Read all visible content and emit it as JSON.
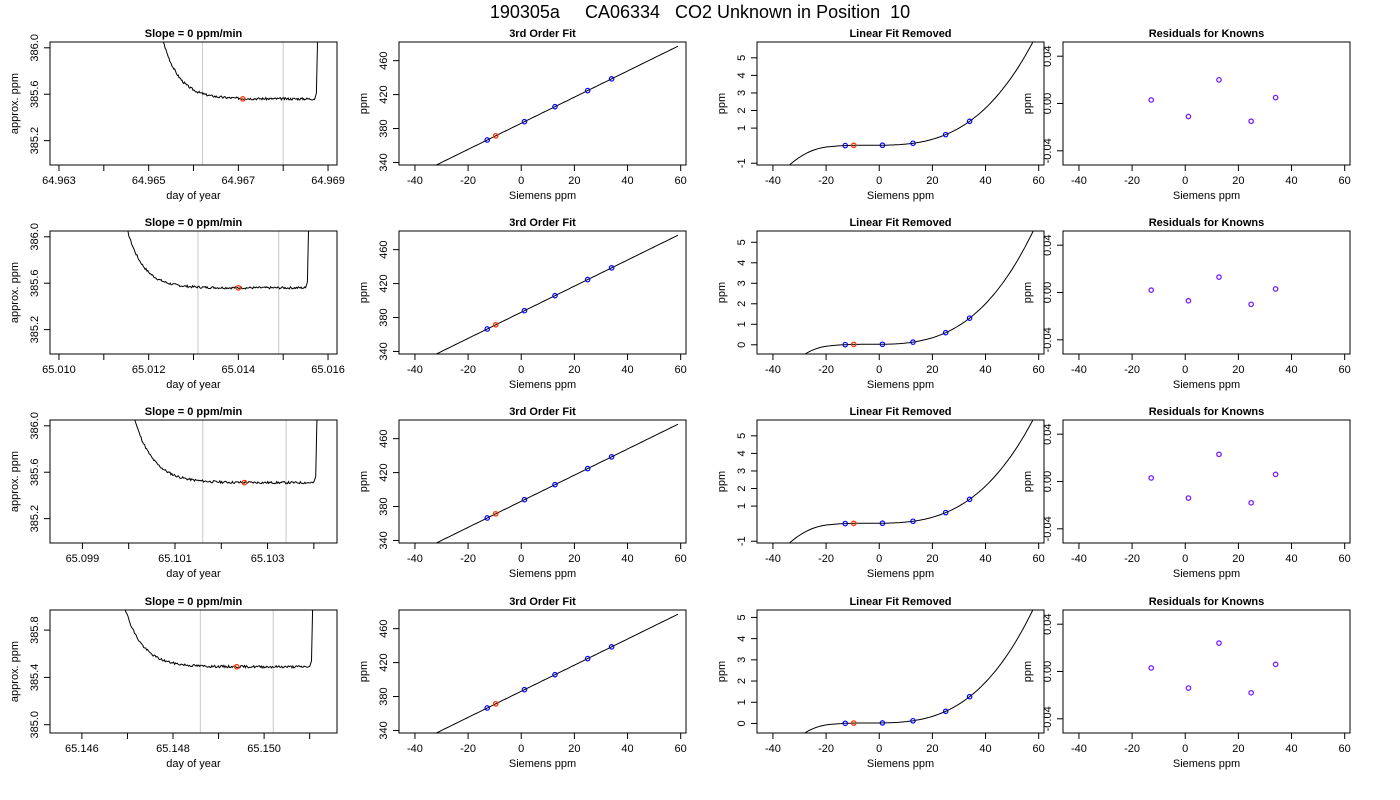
{
  "title": "190305a     CA06334   CO2 Unknown in Position  10",
  "colors": {
    "trace": "#000000",
    "window_line": "#c8c8c8",
    "known_point": "#0000ff",
    "unknown_point": "#ff3300",
    "residual_point": "#7a1fff",
    "axis": "#000000"
  },
  "charts": [
    {
      "type": "line",
      "title": "Slope =  0  ppm/min",
      "xlabel": "day of year",
      "ylabel": "approx. ppm",
      "xticks": [
        64.963,
        64.965,
        64.967,
        64.969
      ],
      "xtick_labels": [
        "64.963",
        "64.965",
        "64.967",
        "64.969"
      ],
      "xminor": [
        64.964,
        64.966,
        64.968
      ],
      "xlim": [
        64.9628,
        64.9692
      ],
      "yticks": [
        385.2,
        385.6,
        386.0
      ],
      "ytick_labels": [
        "385.2",
        "385.6",
        "386.0"
      ],
      "ylim": [
        384.99,
        386.05
      ],
      "window": [
        64.9662,
        64.968
      ],
      "marker": [
        64.9671,
        385.56
      ],
      "trace": {
        "start": 64.9649,
        "end": 64.9687,
        "plateau": 385.56,
        "tail": 0.002,
        "drop": 0.00085,
        "seed": 3
      }
    },
    {
      "type": "line",
      "title": "3rd Order Fit",
      "xlabel": "Siemens ppm",
      "ylabel": "ppm",
      "xticks": [
        -40,
        -20,
        0,
        20,
        40,
        60
      ],
      "xtick_labels": [
        "-40",
        "-20",
        "0",
        "20",
        "40",
        "60"
      ],
      "xlim": [
        -46,
        62
      ],
      "yticks": [
        340,
        380,
        420,
        460
      ],
      "ytick_labels": [
        "340",
        "380",
        "420",
        "460"
      ],
      "ylim": [
        337,
        482
      ],
      "curve": {
        "a": 386.2,
        "b": 1.54,
        "from": -43.5,
        "to": 59
      },
      "knowns_x": [
        -12.8,
        1.2,
        12.7,
        25.0,
        34.0
      ],
      "unknown_x": -9.6
    },
    {
      "type": "line",
      "title": "Linear Fit Removed",
      "xlabel": "Siemens ppm",
      "ylabel": "ppm",
      "xticks": [
        -40,
        -20,
        0,
        20,
        40,
        60
      ],
      "xtick_labels": [
        "-40",
        "-20",
        "0",
        "20",
        "40",
        "60"
      ],
      "xlim": [
        -46,
        62
      ],
      "yticks": [
        -1,
        1,
        2,
        3,
        4,
        5
      ],
      "ytick_labels": [
        "-1",
        "1",
        "2",
        "3",
        "4",
        "5"
      ],
      "ylim": [
        -1.1,
        5.9
      ],
      "curve": {
        "c3": 2.62e-05,
        "c2": 0.0009,
        "c1": -0.01,
        "c0": 0,
        "from": -43.5,
        "to": 59
      },
      "knowns_x": [
        -12.8,
        1.2,
        12.7,
        25.0,
        34.0
      ],
      "unknown_x": -9.6
    },
    {
      "type": "scatter",
      "title": "Residuals for Knowns",
      "xlabel": "Siemens ppm",
      "ylabel": "ppm",
      "xticks": [
        -40,
        -20,
        0,
        20,
        40,
        60
      ],
      "xtick_labels": [
        "-40",
        "-20",
        "0",
        "20",
        "40",
        "60"
      ],
      "xlim": [
        -46,
        62
      ],
      "yticks": [
        -0.04,
        0.0,
        0.04
      ],
      "ytick_labels": [
        "-0.04",
        "0.00",
        "0.04"
      ],
      "ylim": [
        -0.052,
        0.052
      ],
      "points": [
        [
          -12.8,
          0.003
        ],
        [
          1.2,
          -0.011
        ],
        [
          12.7,
          0.02
        ],
        [
          24.8,
          -0.015
        ],
        [
          34.0,
          0.005
        ]
      ]
    },
    {
      "type": "line",
      "title": "Slope =  0  ppm/min",
      "xlabel": "day of year",
      "ylabel": "approx. ppm",
      "xticks": [
        65.01,
        65.012,
        65.014,
        65.016
      ],
      "xtick_labels": [
        "65.010",
        "65.012",
        "65.014",
        "65.016"
      ],
      "xminor": [
        65.011,
        65.013,
        65.015
      ],
      "xlim": [
        65.0098,
        65.0162
      ],
      "yticks": [
        385.2,
        385.6,
        386.0
      ],
      "ytick_labels": [
        "385.2",
        "385.6",
        "386.0"
      ],
      "ylim": [
        384.99,
        386.05
      ],
      "window": [
        65.0131,
        65.0149
      ],
      "marker": [
        65.014,
        385.56
      ],
      "trace": {
        "start": 65.0111,
        "end": 65.0155,
        "plateau": 385.56,
        "tail": 0.002,
        "drop": 0.0006,
        "seed": 7
      }
    },
    {
      "type": "line",
      "title": "3rd Order Fit",
      "xlabel": "Siemens ppm",
      "ylabel": "ppm",
      "xticks": [
        -40,
        -20,
        0,
        20,
        40,
        60
      ],
      "xtick_labels": [
        "-40",
        "-20",
        "0",
        "20",
        "40",
        "60"
      ],
      "xlim": [
        -46,
        62
      ],
      "yticks": [
        340,
        380,
        420,
        460
      ],
      "ytick_labels": [
        "340",
        "380",
        "420",
        "460"
      ],
      "ylim": [
        337,
        482
      ],
      "curve": {
        "a": 386.2,
        "b": 1.54,
        "from": -43.5,
        "to": 59
      },
      "knowns_x": [
        -12.8,
        1.2,
        12.7,
        25.0,
        34.0
      ],
      "unknown_x": -9.6
    },
    {
      "type": "line",
      "title": "Linear Fit Removed",
      "xlabel": "Siemens ppm",
      "ylabel": "ppm",
      "xticks": [
        -40,
        -20,
        0,
        20,
        40,
        60
      ],
      "xtick_labels": [
        "-40",
        "-20",
        "0",
        "20",
        "40",
        "60"
      ],
      "xlim": [
        -46,
        62
      ],
      "yticks": [
        0,
        1,
        2,
        3,
        4,
        5
      ],
      "ytick_labels": [
        "0",
        "1",
        "2",
        "3",
        "4",
        "5"
      ],
      "ylim": [
        -0.45,
        5.55
      ],
      "curve": {
        "c3": 2.45e-05,
        "c2": 0.00085,
        "c1": -0.009,
        "c0": 0,
        "from": -43.5,
        "to": 59
      },
      "knowns_x": [
        -12.8,
        1.2,
        12.7,
        25.0,
        34.0
      ],
      "unknown_x": -9.6
    },
    {
      "type": "scatter",
      "title": "Residuals for Knowns",
      "xlabel": "Siemens ppm",
      "ylabel": "ppm",
      "xticks": [
        -40,
        -20,
        0,
        20,
        40,
        60
      ],
      "xtick_labels": [
        "-40",
        "-20",
        "0",
        "20",
        "40",
        "60"
      ],
      "xlim": [
        -46,
        62
      ],
      "yticks": [
        -0.04,
        0.0,
        0.04
      ],
      "ytick_labels": [
        "-0.04",
        "0.00",
        "0.04"
      ],
      "ylim": [
        -0.052,
        0.052
      ],
      "points": [
        [
          -12.8,
          0.002
        ],
        [
          1.2,
          -0.007
        ],
        [
          12.7,
          0.013
        ],
        [
          24.8,
          -0.01
        ],
        [
          34.0,
          0.003
        ]
      ]
    },
    {
      "type": "line",
      "title": "Slope =  0  ppm/min",
      "xlabel": "day of year",
      "ylabel": "approx. ppm",
      "xticks": [
        65.099,
        65.101,
        65.103
      ],
      "xtick_labels": [
        "65.099",
        "65.101",
        "65.103"
      ],
      "xminor": [
        65.1,
        65.102,
        65.104
      ],
      "xlim": [
        65.0983,
        65.1045
      ],
      "yticks": [
        385.2,
        385.6,
        386.0
      ],
      "ytick_labels": [
        "385.2",
        "385.6",
        "386.0"
      ],
      "ylim": [
        384.99,
        386.05
      ],
      "window": [
        65.1016,
        65.1034
      ],
      "marker": [
        65.1025,
        385.51
      ],
      "trace": {
        "start": 65.0997,
        "end": 65.104,
        "plateau": 385.51,
        "tail": 0.0022,
        "drop": 0.00055,
        "seed": 11
      }
    },
    {
      "type": "line",
      "title": "3rd Order Fit",
      "xlabel": "Siemens ppm",
      "ylabel": "ppm",
      "xticks": [
        -40,
        -20,
        0,
        20,
        40,
        60
      ],
      "xtick_labels": [
        "-40",
        "-20",
        "0",
        "20",
        "40",
        "60"
      ],
      "xlim": [
        -46,
        62
      ],
      "yticks": [
        340,
        380,
        420,
        460
      ],
      "ytick_labels": [
        "340",
        "380",
        "420",
        "460"
      ],
      "ylim": [
        337,
        482
      ],
      "curve": {
        "a": 386.2,
        "b": 1.54,
        "from": -43.5,
        "to": 59
      },
      "knowns_x": [
        -12.8,
        1.2,
        12.7,
        25.0,
        34.0
      ],
      "unknown_x": -9.6
    },
    {
      "type": "line",
      "title": "Linear Fit Removed",
      "xlabel": "Siemens ppm",
      "ylabel": "ppm",
      "xticks": [
        -40,
        -20,
        0,
        20,
        40,
        60
      ],
      "xtick_labels": [
        "-40",
        "-20",
        "0",
        "20",
        "40",
        "60"
      ],
      "xlim": [
        -46,
        62
      ],
      "yticks": [
        -1,
        1,
        2,
        3,
        4,
        5
      ],
      "ytick_labels": [
        "-1",
        "1",
        "2",
        "3",
        "4",
        "5"
      ],
      "ylim": [
        -1.1,
        5.9
      ],
      "curve": {
        "c3": 2.62e-05,
        "c2": 0.0009,
        "c1": -0.01,
        "c0": 0,
        "from": -43.5,
        "to": 59
      },
      "knowns_x": [
        -12.8,
        1.2,
        12.7,
        25.0,
        34.0
      ],
      "unknown_x": -9.6
    },
    {
      "type": "scatter",
      "title": "Residuals for Knowns",
      "xlabel": "Siemens ppm",
      "ylabel": "ppm",
      "xticks": [
        -40,
        -20,
        0,
        20,
        40,
        60
      ],
      "xtick_labels": [
        "-40",
        "-20",
        "0",
        "20",
        "40",
        "60"
      ],
      "xlim": [
        -46,
        62
      ],
      "yticks": [
        -0.04,
        0.0,
        0.04
      ],
      "ytick_labels": [
        "-0.04",
        "0.00",
        "0.04"
      ],
      "ylim": [
        -0.052,
        0.052
      ],
      "points": [
        [
          -12.8,
          0.003
        ],
        [
          1.2,
          -0.014
        ],
        [
          12.7,
          0.023
        ],
        [
          24.8,
          -0.018
        ],
        [
          34.0,
          0.006
        ]
      ]
    },
    {
      "type": "line",
      "title": "Slope =  0  ppm/min",
      "xlabel": "day of year",
      "ylabel": "approx. ppm",
      "xticks": [
        65.146,
        65.148,
        65.15
      ],
      "xtick_labels": [
        "65.146",
        "65.148",
        "65.150"
      ],
      "xminor": [
        65.147,
        65.149,
        65.151
      ],
      "xlim": [
        65.1453,
        65.1516
      ],
      "yticks": [
        385.0,
        385.4,
        385.8
      ],
      "ytick_labels": [
        "385.0",
        "385.4",
        "385.8"
      ],
      "ylim": [
        384.93,
        385.97
      ],
      "window": [
        65.1486,
        65.1502
      ],
      "marker": [
        65.1494,
        385.49
      ],
      "trace": {
        "start": 65.1465,
        "end": 65.151,
        "plateau": 385.49,
        "tail": 0.0021,
        "drop": 0.0006,
        "seed": 19
      }
    },
    {
      "type": "line",
      "title": "3rd Order Fit",
      "xlabel": "Siemens ppm",
      "ylabel": "ppm",
      "xticks": [
        -40,
        -20,
        0,
        20,
        40,
        60
      ],
      "xtick_labels": [
        "-40",
        "-20",
        "0",
        "20",
        "40",
        "60"
      ],
      "xlim": [
        -46,
        62
      ],
      "yticks": [
        340,
        380,
        420,
        460
      ],
      "ytick_labels": [
        "340",
        "380",
        "420",
        "460"
      ],
      "ylim": [
        337,
        482
      ],
      "curve": {
        "a": 386.2,
        "b": 1.54,
        "from": -43.5,
        "to": 59
      },
      "knowns_x": [
        -12.8,
        1.2,
        12.7,
        25.0,
        34.0
      ],
      "unknown_x": -9.6
    },
    {
      "type": "line",
      "title": "Linear Fit Removed",
      "xlabel": "Siemens ppm",
      "ylabel": "ppm",
      "xticks": [
        -40,
        -20,
        0,
        20,
        40,
        60
      ],
      "xtick_labels": [
        "-40",
        "-20",
        "0",
        "20",
        "40",
        "60"
      ],
      "xlim": [
        -46,
        62
      ],
      "yticks": [
        0,
        1,
        2,
        3,
        4,
        5
      ],
      "ytick_labels": [
        "0",
        "1",
        "2",
        "3",
        "4",
        "5"
      ],
      "ylim": [
        -0.45,
        5.35
      ],
      "curve": {
        "c3": 2.38e-05,
        "c2": 0.00083,
        "c1": -0.009,
        "c0": 0,
        "from": -43.5,
        "to": 59
      },
      "knowns_x": [
        -12.8,
        1.2,
        12.7,
        25.0,
        34.0
      ],
      "unknown_x": -9.6
    },
    {
      "type": "scatter",
      "title": "Residuals for Knowns",
      "xlabel": "Siemens ppm",
      "ylabel": "ppm",
      "xticks": [
        -40,
        -20,
        0,
        20,
        40,
        60
      ],
      "xtick_labels": [
        "-40",
        "-20",
        "0",
        "20",
        "40",
        "60"
      ],
      "xlim": [
        -46,
        62
      ],
      "yticks": [
        -0.04,
        0.0,
        0.04
      ],
      "ytick_labels": [
        "-0.04",
        "0.00",
        "0.04"
      ],
      "ylim": [
        -0.052,
        0.052
      ],
      "points": [
        [
          -12.8,
          0.003
        ],
        [
          1.2,
          -0.014
        ],
        [
          12.7,
          0.024
        ],
        [
          24.8,
          -0.018
        ],
        [
          34.0,
          0.006
        ]
      ]
    }
  ]
}
